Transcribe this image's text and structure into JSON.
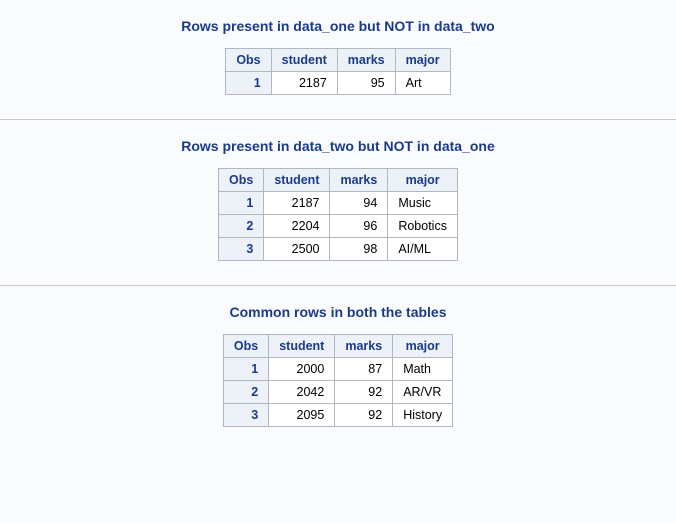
{
  "sections": [
    {
      "title": "Rows present in data_one but NOT in data_two",
      "columns": [
        "Obs",
        "student",
        "marks",
        "major"
      ],
      "col_align": [
        "obs",
        "num",
        "num",
        "txt"
      ],
      "rows": [
        [
          "1",
          "2187",
          "95",
          "Art"
        ]
      ]
    },
    {
      "title": "Rows present in data_two but NOT in data_one",
      "columns": [
        "Obs",
        "student",
        "marks",
        "major"
      ],
      "col_align": [
        "obs",
        "num",
        "num",
        "txt"
      ],
      "rows": [
        [
          "1",
          "2187",
          "94",
          "Music"
        ],
        [
          "2",
          "2204",
          "96",
          "Robotics"
        ],
        [
          "3",
          "2500",
          "98",
          "AI/ML"
        ]
      ]
    },
    {
      "title": "Common rows in both the tables",
      "columns": [
        "Obs",
        "student",
        "marks",
        "major"
      ],
      "col_align": [
        "obs",
        "num",
        "num",
        "txt"
      ],
      "rows": [
        [
          "1",
          "2000",
          "87",
          "Math"
        ],
        [
          "2",
          "2042",
          "92",
          "AR/VR"
        ],
        [
          "3",
          "2095",
          "92",
          "History"
        ]
      ]
    }
  ],
  "colors": {
    "header_bg": "#edf2f9",
    "header_text": "#1a3a8a",
    "cell_bg": "#ffffff",
    "border": "#b0b7bf",
    "divider": "#c8c8c8",
    "page_bg": "#fafbfc"
  }
}
